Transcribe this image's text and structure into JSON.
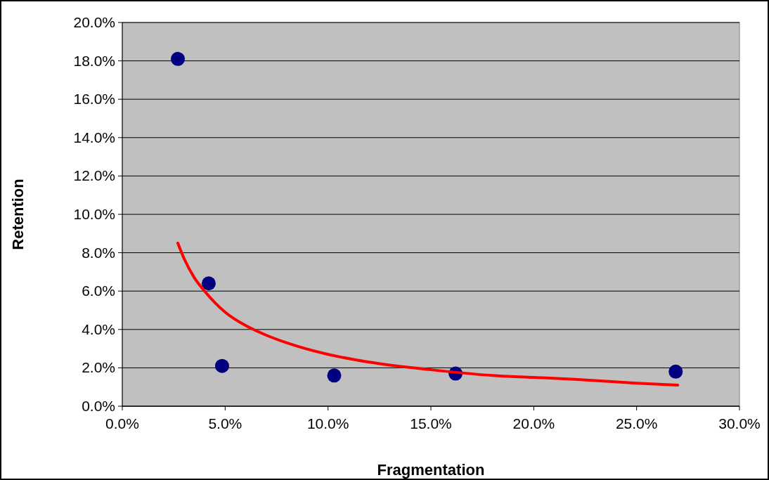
{
  "chart_data": {
    "type": "scatter",
    "xlabel": "Fragmentation",
    "ylabel": "Retention",
    "xlim": [
      0,
      30
    ],
    "xticks": [
      {
        "value": 0,
        "label": "0.0%"
      },
      {
        "value": 5,
        "label": "5.0%"
      },
      {
        "value": 10,
        "label": "10.0%"
      },
      {
        "value": 15,
        "label": "15.0%"
      },
      {
        "value": 20,
        "label": "20.0%"
      },
      {
        "value": 25,
        "label": "25.0%"
      },
      {
        "value": 30,
        "label": "30.0%"
      }
    ],
    "ylim": [
      0,
      20
    ],
    "yticks": [
      {
        "value": 0,
        "label": "0.0%"
      },
      {
        "value": 2,
        "label": "2.0%"
      },
      {
        "value": 4,
        "label": "4.0%"
      },
      {
        "value": 6,
        "label": "6.0%"
      },
      {
        "value": 8,
        "label": "8.0%"
      },
      {
        "value": 10,
        "label": "10.0%"
      },
      {
        "value": 12,
        "label": "12.0%"
      },
      {
        "value": 14,
        "label": "14.0%"
      },
      {
        "value": 16,
        "label": "16.0%"
      },
      {
        "value": 18,
        "label": "18.0%"
      },
      {
        "value": 20,
        "label": "20.0%"
      }
    ],
    "grid": "y",
    "series": [
      {
        "marker": "circle",
        "color": "#000080",
        "x": [
          2.7,
          4.2,
          4.85,
          10.3,
          16.2,
          26.9
        ],
        "values": [
          18.1,
          6.4,
          2.1,
          1.6,
          1.7,
          1.8
        ]
      },
      {
        "type": "line",
        "color": "#ff0000",
        "line_style": "solid",
        "x": [
          2.7,
          3,
          3.5,
          4,
          5,
          6,
          7,
          8,
          10,
          12,
          15,
          18,
          20,
          22,
          25,
          27
        ],
        "values": [
          8.5,
          7.7,
          6.7,
          6.0,
          4.9,
          4.2,
          3.7,
          3.3,
          2.7,
          2.3,
          1.9,
          1.6,
          1.5,
          1.4,
          1.2,
          1.1
        ]
      }
    ]
  }
}
